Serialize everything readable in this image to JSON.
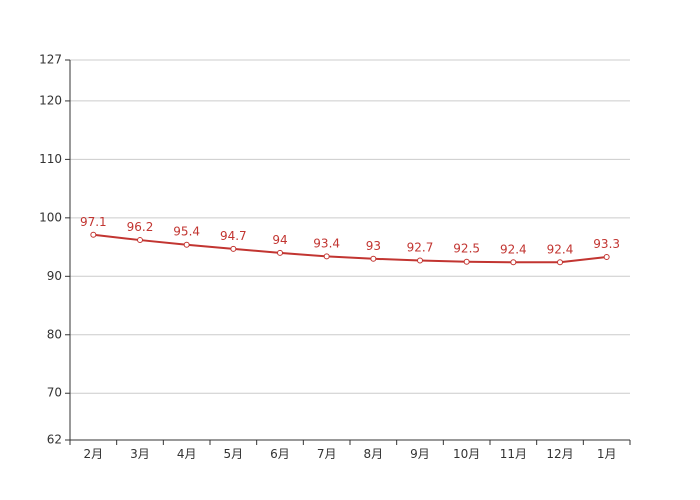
{
  "chart_data": {
    "type": "line",
    "title": "",
    "xlabel": "",
    "ylabel": "",
    "categories": [
      "2月",
      "3月",
      "4月",
      "5月",
      "6月",
      "7月",
      "8月",
      "9月",
      "10月",
      "11月",
      "12月",
      "1月"
    ],
    "series": [
      {
        "values": [
          97.1,
          96.2,
          95.4,
          94.7,
          94,
          93.4,
          93,
          92.7,
          92.5,
          92.4,
          92.4,
          93.3
        ],
        "data_labels": [
          "97.1",
          "96.2",
          "95.4",
          "94.7",
          "94",
          "93.4",
          "93",
          "92.7",
          "92.5",
          "92.4",
          "92.4",
          "93.3"
        ]
      }
    ],
    "y_ticks": [
      62,
      70,
      80,
      90,
      100,
      110,
      120,
      127
    ],
    "ylim": [
      62,
      127
    ],
    "grid": true,
    "legend": "none",
    "colors": {
      "series": "#c23531",
      "grid": "#cccccc",
      "axis": "#333333",
      "tick_text": "#333333"
    }
  }
}
